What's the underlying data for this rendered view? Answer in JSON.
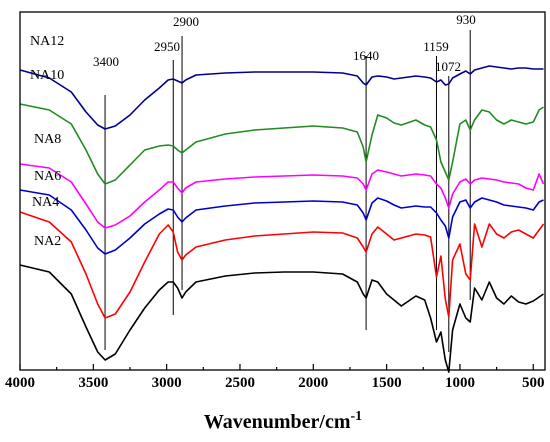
{
  "chart_data": {
    "type": "line",
    "xlabel": "Wavenumber/cm",
    "xlabel_sup": "-1",
    "xlim": [
      4000,
      420
    ],
    "xticks": [
      4000,
      3500,
      3000,
      2500,
      2000,
      1500,
      1000,
      500
    ],
    "y_axis": "no ticks or labels (spectra offset vertically)",
    "grid": false,
    "annotations": [
      {
        "label": "3400",
        "x": 3420
      },
      {
        "label": "2950",
        "x": 2955
      },
      {
        "label": "2900",
        "x": 2895
      },
      {
        "label": "1640",
        "x": 1640
      },
      {
        "label": "1159",
        "x": 1160
      },
      {
        "label": "1072",
        "x": 1076
      },
      {
        "label": "930",
        "x": 930
      }
    ],
    "series": [
      {
        "name": "NA12",
        "color": "#00008b",
        "points": [
          [
            4000,
            58
          ],
          [
            3800,
            66
          ],
          [
            3650,
            80
          ],
          [
            3550,
            100
          ],
          [
            3470,
            113
          ],
          [
            3420,
            117
          ],
          [
            3350,
            114
          ],
          [
            3250,
            103
          ],
          [
            3150,
            88
          ],
          [
            3050,
            76
          ],
          [
            2990,
            68
          ],
          [
            2955,
            67
          ],
          [
            2925,
            69
          ],
          [
            2895,
            71
          ],
          [
            2870,
            68
          ],
          [
            2800,
            63
          ],
          [
            2600,
            61
          ],
          [
            2400,
            60
          ],
          [
            2200,
            60
          ],
          [
            2000,
            60
          ],
          [
            1800,
            61
          ],
          [
            1700,
            64
          ],
          [
            1660,
            71
          ],
          [
            1640,
            73
          ],
          [
            1600,
            65
          ],
          [
            1560,
            64
          ],
          [
            1500,
            65
          ],
          [
            1450,
            67
          ],
          [
            1400,
            66
          ],
          [
            1300,
            64
          ],
          [
            1240,
            65
          ],
          [
            1200,
            66
          ],
          [
            1160,
            70
          ],
          [
            1130,
            68
          ],
          [
            1100,
            73
          ],
          [
            1076,
            72
          ],
          [
            1050,
            66
          ],
          [
            1000,
            62
          ],
          [
            960,
            59
          ],
          [
            930,
            62
          ],
          [
            900,
            58
          ],
          [
            850,
            56
          ],
          [
            800,
            54
          ],
          [
            750,
            55
          ],
          [
            700,
            56
          ],
          [
            650,
            57
          ],
          [
            600,
            56
          ],
          [
            550,
            56
          ],
          [
            500,
            57
          ],
          [
            460,
            57
          ],
          [
            430,
            57
          ]
        ]
      },
      {
        "name": "NA10",
        "color": "#228b22",
        "points": [
          [
            4000,
            92
          ],
          [
            3800,
            98
          ],
          [
            3650,
            112
          ],
          [
            3550,
            138
          ],
          [
            3470,
            162
          ],
          [
            3420,
            172
          ],
          [
            3350,
            168
          ],
          [
            3250,
            153
          ],
          [
            3150,
            138
          ],
          [
            3050,
            134
          ],
          [
            2990,
            133
          ],
          [
            2955,
            134
          ],
          [
            2925,
            138
          ],
          [
            2895,
            141
          ],
          [
            2870,
            138
          ],
          [
            2800,
            130
          ],
          [
            2600,
            122
          ],
          [
            2400,
            118
          ],
          [
            2200,
            116
          ],
          [
            2000,
            114
          ],
          [
            1800,
            116
          ],
          [
            1700,
            120
          ],
          [
            1660,
            135
          ],
          [
            1640,
            150
          ],
          [
            1600,
            123
          ],
          [
            1560,
            103
          ],
          [
            1500,
            106
          ],
          [
            1450,
            111
          ],
          [
            1400,
            113
          ],
          [
            1300,
            108
          ],
          [
            1240,
            113
          ],
          [
            1200,
            115
          ],
          [
            1160,
            128
          ],
          [
            1130,
            150
          ],
          [
            1100,
            160
          ],
          [
            1076,
            168
          ],
          [
            1050,
            150
          ],
          [
            1000,
            112
          ],
          [
            960,
            108
          ],
          [
            930,
            118
          ],
          [
            900,
            108
          ],
          [
            850,
            98
          ],
          [
            800,
            100
          ],
          [
            750,
            108
          ],
          [
            700,
            112
          ],
          [
            650,
            108
          ],
          [
            600,
            110
          ],
          [
            550,
            112
          ],
          [
            500,
            110
          ],
          [
            460,
            98
          ],
          [
            430,
            95
          ]
        ]
      },
      {
        "name": "NA8",
        "color": "#ff00ff",
        "points": [
          [
            4000,
            152
          ],
          [
            3800,
            156
          ],
          [
            3650,
            170
          ],
          [
            3550,
            192
          ],
          [
            3470,
            210
          ],
          [
            3420,
            216
          ],
          [
            3350,
            213
          ],
          [
            3250,
            204
          ],
          [
            3150,
            190
          ],
          [
            3050,
            178
          ],
          [
            2990,
            170
          ],
          [
            2955,
            170
          ],
          [
            2925,
            176
          ],
          [
            2895,
            181
          ],
          [
            2870,
            176
          ],
          [
            2800,
            170
          ],
          [
            2600,
            167
          ],
          [
            2400,
            165
          ],
          [
            2200,
            164
          ],
          [
            2000,
            163
          ],
          [
            1800,
            164
          ],
          [
            1700,
            166
          ],
          [
            1660,
            172
          ],
          [
            1640,
            178
          ],
          [
            1600,
            162
          ],
          [
            1560,
            158
          ],
          [
            1500,
            160
          ],
          [
            1450,
            162
          ],
          [
            1400,
            164
          ],
          [
            1300,
            162
          ],
          [
            1240,
            163
          ],
          [
            1200,
            164
          ],
          [
            1160,
            172
          ],
          [
            1130,
            176
          ],
          [
            1100,
            186
          ],
          [
            1076,
            196
          ],
          [
            1050,
            182
          ],
          [
            1000,
            170
          ],
          [
            960,
            167
          ],
          [
            930,
            172
          ],
          [
            900,
            168
          ],
          [
            850,
            166
          ],
          [
            800,
            167
          ],
          [
            750,
            168
          ],
          [
            700,
            170
          ],
          [
            650,
            171
          ],
          [
            600,
            172
          ],
          [
            550,
            176
          ],
          [
            500,
            178
          ],
          [
            460,
            162
          ],
          [
            430,
            172
          ]
        ]
      },
      {
        "name": "NA6",
        "color": "#0000cd",
        "points": [
          [
            4000,
            178
          ],
          [
            3800,
            183
          ],
          [
            3650,
            198
          ],
          [
            3550,
            218
          ],
          [
            3470,
            236
          ],
          [
            3420,
            242
          ],
          [
            3350,
            238
          ],
          [
            3250,
            226
          ],
          [
            3150,
            212
          ],
          [
            3050,
            202
          ],
          [
            2990,
            197
          ],
          [
            2955,
            198
          ],
          [
            2925,
            205
          ],
          [
            2895,
            210
          ],
          [
            2870,
            206
          ],
          [
            2800,
            198
          ],
          [
            2600,
            194
          ],
          [
            2400,
            191
          ],
          [
            2200,
            190
          ],
          [
            2000,
            189
          ],
          [
            1800,
            190
          ],
          [
            1700,
            193
          ],
          [
            1660,
            201
          ],
          [
            1640,
            208
          ],
          [
            1600,
            191
          ],
          [
            1560,
            186
          ],
          [
            1500,
            189
          ],
          [
            1450,
            193
          ],
          [
            1400,
            196
          ],
          [
            1300,
            194
          ],
          [
            1240,
            195
          ],
          [
            1200,
            195
          ],
          [
            1160,
            201
          ],
          [
            1130,
            208
          ],
          [
            1100,
            214
          ],
          [
            1076,
            226
          ],
          [
            1050,
            205
          ],
          [
            1000,
            190
          ],
          [
            960,
            188
          ],
          [
            930,
            196
          ],
          [
            900,
            190
          ],
          [
            850,
            186
          ],
          [
            800,
            188
          ],
          [
            750,
            190
          ],
          [
            700,
            193
          ],
          [
            650,
            194
          ],
          [
            600,
            195
          ],
          [
            550,
            196
          ],
          [
            500,
            198
          ],
          [
            460,
            190
          ],
          [
            430,
            188
          ]
        ]
      },
      {
        "name": "NA4",
        "color": "#ff0000",
        "points": [
          [
            4000,
            200
          ],
          [
            3800,
            210
          ],
          [
            3650,
            230
          ],
          [
            3550,
            262
          ],
          [
            3470,
            292
          ],
          [
            3420,
            306
          ],
          [
            3350,
            302
          ],
          [
            3250,
            280
          ],
          [
            3150,
            250
          ],
          [
            3050,
            222
          ],
          [
            2990,
            213
          ],
          [
            2955,
            220
          ],
          [
            2925,
            240
          ],
          [
            2895,
            248
          ],
          [
            2870,
            243
          ],
          [
            2800,
            235
          ],
          [
            2600,
            228
          ],
          [
            2400,
            224
          ],
          [
            2200,
            222
          ],
          [
            2000,
            220
          ],
          [
            1800,
            221
          ],
          [
            1700,
            226
          ],
          [
            1660,
            235
          ],
          [
            1640,
            240
          ],
          [
            1600,
            222
          ],
          [
            1560,
            215
          ],
          [
            1500,
            222
          ],
          [
            1450,
            228
          ],
          [
            1400,
            226
          ],
          [
            1300,
            222
          ],
          [
            1240,
            223
          ],
          [
            1200,
            225
          ],
          [
            1160,
            265
          ],
          [
            1130,
            244
          ],
          [
            1100,
            287
          ],
          [
            1076,
            305
          ],
          [
            1050,
            248
          ],
          [
            1000,
            232
          ],
          [
            960,
            262
          ],
          [
            930,
            268
          ],
          [
            900,
            212
          ],
          [
            850,
            235
          ],
          [
            800,
            212
          ],
          [
            750,
            222
          ],
          [
            700,
            226
          ],
          [
            650,
            220
          ],
          [
            600,
            218
          ],
          [
            550,
            222
          ],
          [
            500,
            226
          ],
          [
            460,
            218
          ],
          [
            430,
            212
          ]
        ]
      },
      {
        "name": "NA2",
        "color": "#000000",
        "points": [
          [
            4000,
            253
          ],
          [
            3800,
            260
          ],
          [
            3650,
            282
          ],
          [
            3550,
            315
          ],
          [
            3470,
            340
          ],
          [
            3420,
            348
          ],
          [
            3350,
            342
          ],
          [
            3250,
            318
          ],
          [
            3150,
            296
          ],
          [
            3050,
            278
          ],
          [
            2990,
            270
          ],
          [
            2955,
            270
          ],
          [
            2925,
            276
          ],
          [
            2895,
            286
          ],
          [
            2870,
            280
          ],
          [
            2800,
            270
          ],
          [
            2600,
            264
          ],
          [
            2400,
            261
          ],
          [
            2200,
            260
          ],
          [
            2000,
            260
          ],
          [
            1800,
            262
          ],
          [
            1700,
            270
          ],
          [
            1660,
            282
          ],
          [
            1640,
            286
          ],
          [
            1600,
            268
          ],
          [
            1560,
            270
          ],
          [
            1500,
            282
          ],
          [
            1450,
            288
          ],
          [
            1400,
            294
          ],
          [
            1300,
            284
          ],
          [
            1240,
            288
          ],
          [
            1200,
            306
          ],
          [
            1160,
            330
          ],
          [
            1130,
            320
          ],
          [
            1100,
            348
          ],
          [
            1076,
            360
          ],
          [
            1050,
            318
          ],
          [
            1000,
            292
          ],
          [
            960,
            306
          ],
          [
            930,
            310
          ],
          [
            900,
            276
          ],
          [
            850,
            288
          ],
          [
            800,
            270
          ],
          [
            750,
            286
          ],
          [
            700,
            292
          ],
          [
            650,
            284
          ],
          [
            600,
            290
          ],
          [
            550,
            292
          ],
          [
            500,
            289
          ],
          [
            460,
            285
          ],
          [
            430,
            282
          ]
        ]
      }
    ]
  }
}
